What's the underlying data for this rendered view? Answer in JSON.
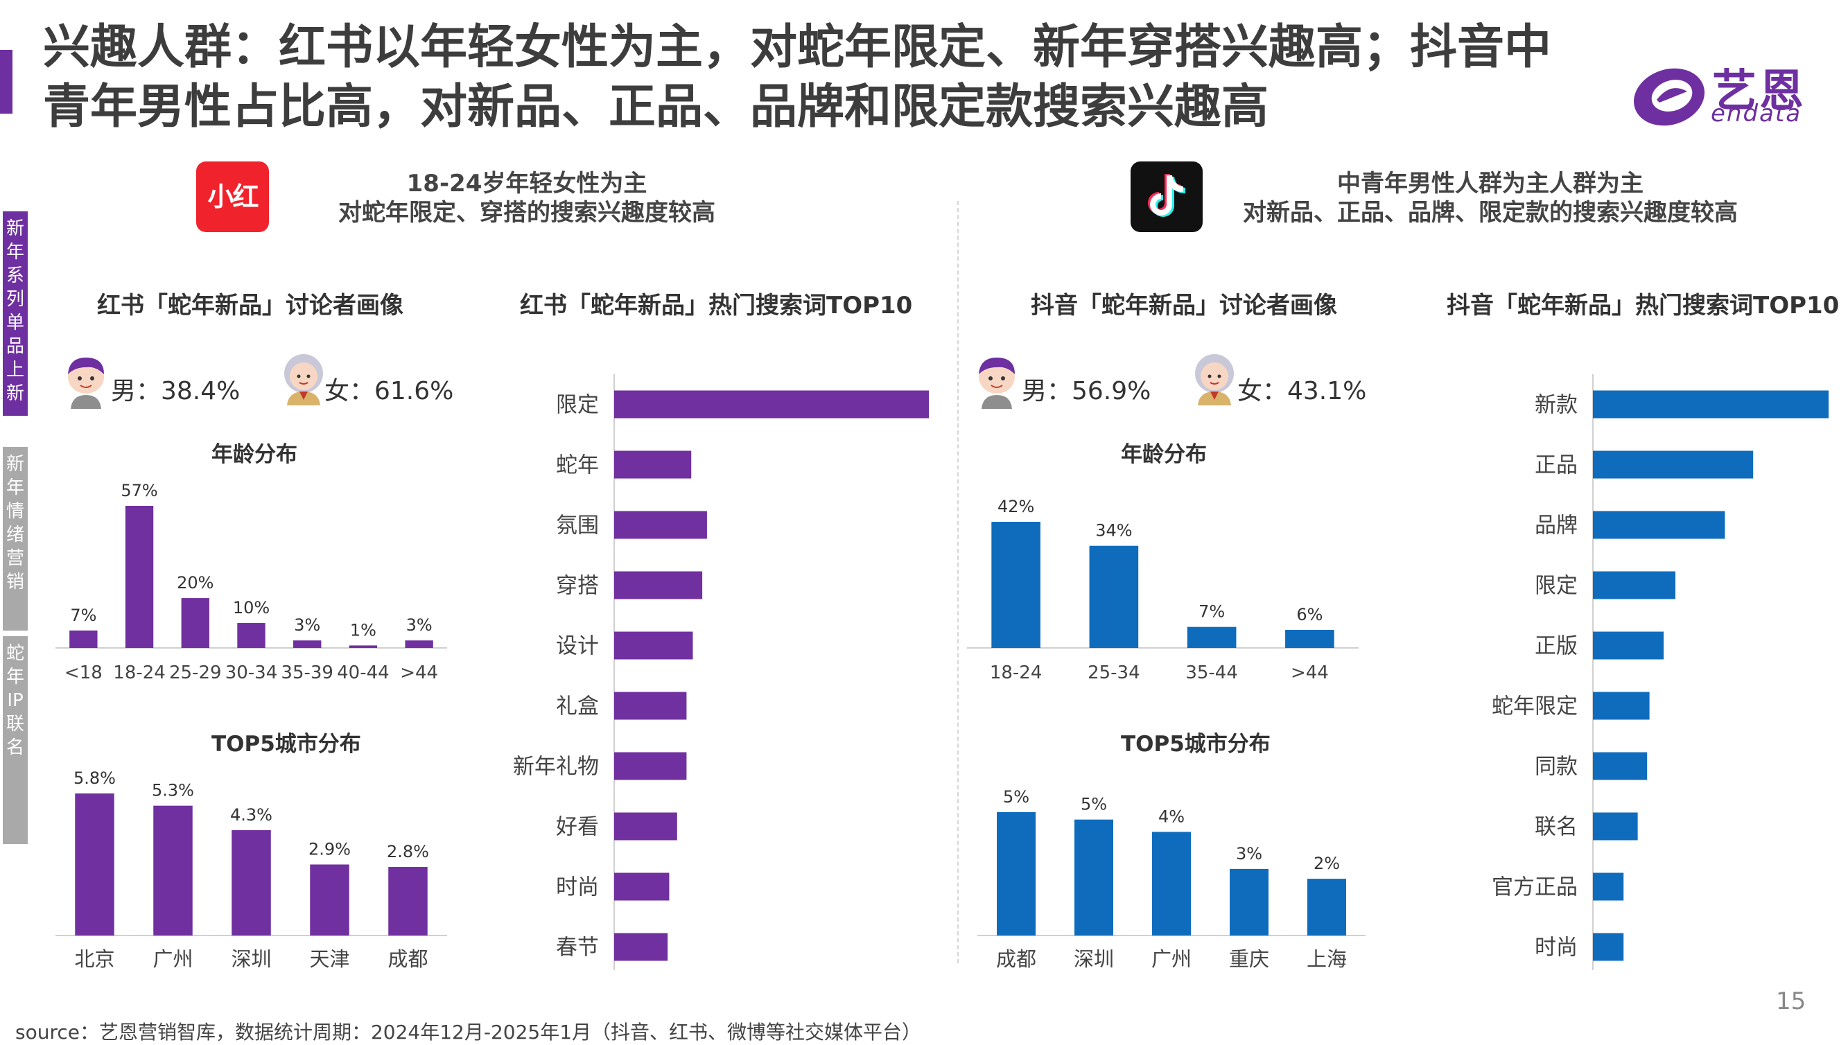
{
  "title": {
    "line1": "兴趣人群：红书以年轻女性为主，对蛇年限定、新年穿搭兴趣高；抖音中",
    "line2": "青年男性占比高，对新品、正品、品牌和限定款搜索兴趣高"
  },
  "brand": {
    "name_cn": "艺恩",
    "name_en": "endata"
  },
  "sidebar": {
    "items": [
      {
        "label": "新年系列单品上新",
        "active": true
      },
      {
        "label": "新年情绪营销",
        "active": false
      },
      {
        "label": "蛇年IP联名",
        "active": false
      }
    ]
  },
  "xiaohongshu": {
    "logo_text": "小红书",
    "intro_line1": "18-24岁年轻女性为主",
    "intro_line2": "对蛇年限定、穿搭的搜索兴趣度较高",
    "profile_title": "红书「蛇年新品」讨论者画像",
    "male_text": "男：38.4%",
    "female_text": "女：61.6%",
    "age_title": "年龄分布",
    "city_title": "TOP5城市分布",
    "search_title": "红书「蛇年新品」热门搜索词TOP10"
  },
  "douyin": {
    "intro_line1": "中青年男性人群为主人群为主",
    "intro_line2": "对新品、正品、品牌、限定款的搜索兴趣度较高",
    "profile_title": "抖音「蛇年新品」讨论者画像",
    "male_text": "男：56.9%",
    "female_text": "女：43.1%",
    "age_title": "年龄分布",
    "city_title": "TOP5城市分布",
    "search_title": "抖音「蛇年新品」热门搜索词TOP10"
  },
  "colors": {
    "purple": "#7030a0",
    "blue": "#0f6cbd",
    "title_bar": "#6e2fa0"
  },
  "chart_data": [
    {
      "id": "xhs_age",
      "type": "bar",
      "color": "#7030a0",
      "categories": [
        "<18",
        "18-24",
        "25-29",
        "30-34",
        "35-39",
        "40-44",
        ">44"
      ],
      "values": [
        7,
        57,
        20,
        10,
        3,
        1,
        3
      ],
      "value_labels": [
        "7%",
        "57%",
        "20%",
        "10%",
        "3%",
        "1%",
        "3%"
      ]
    },
    {
      "id": "xhs_city",
      "type": "bar",
      "color": "#7030a0",
      "categories": [
        "北京",
        "广州",
        "深圳",
        "天津",
        "成都"
      ],
      "values": [
        5.8,
        5.3,
        4.3,
        2.9,
        2.8
      ],
      "value_labels": [
        "5.8%",
        "5.3%",
        "4.3%",
        "2.9%",
        "2.8%"
      ]
    },
    {
      "id": "xhs_search",
      "type": "bar",
      "orientation": "horizontal",
      "color": "#7030a0",
      "categories": [
        "限定",
        "蛇年",
        "氛围",
        "穿搭",
        "设计",
        "礼盒",
        "新年礼物",
        "好看",
        "时尚",
        "春节"
      ],
      "values": [
        100,
        24.5,
        29.5,
        28,
        25,
        23,
        23,
        20,
        17.5,
        17
      ]
    },
    {
      "id": "dy_age",
      "type": "bar",
      "color": "#0f6cbd",
      "categories": [
        "18-24",
        "25-34",
        "35-44",
        ">44"
      ],
      "values": [
        42,
        34,
        7,
        6
      ],
      "value_labels": [
        "42%",
        "34%",
        "7%",
        "6%"
      ]
    },
    {
      "id": "dy_city",
      "type": "bar",
      "color": "#0f6cbd",
      "categories": [
        "成都",
        "深圳",
        "广州",
        "重庆",
        "上海"
      ],
      "values": [
        5,
        4.7,
        4.2,
        2.7,
        2.3
      ],
      "value_labels": [
        "5%",
        "5%",
        "4%",
        "3%",
        "2%"
      ]
    },
    {
      "id": "dy_search",
      "type": "bar",
      "orientation": "horizontal",
      "color": "#0f6cbd",
      "categories": [
        "新款",
        "正品",
        "品牌",
        "限定",
        "正版",
        "蛇年限定",
        "同款",
        "联名",
        "官方正品",
        "时尚"
      ],
      "values": [
        100,
        68,
        56,
        35,
        30,
        24,
        23,
        19,
        13,
        13
      ]
    }
  ],
  "footer": {
    "source": "source：艺恩营销智库，数据统计周期：2024年12月-2025年1月（抖音、红书、微博等社交媒体平台）",
    "page_number": "15"
  }
}
